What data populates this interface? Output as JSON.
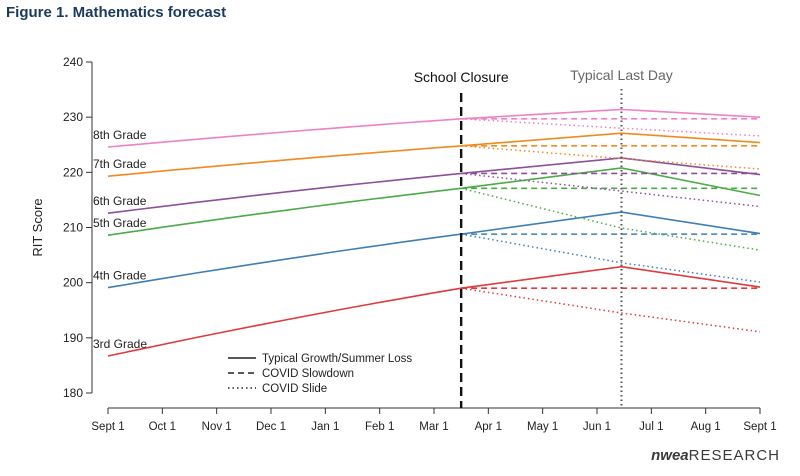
{
  "figure": {
    "title": "Figure 1. Mathematics forecast"
  },
  "brand": {
    "part1": "nwea",
    "part2": "RESEARCH"
  },
  "chart_data": {
    "type": "line",
    "title": "Figure 1. Mathematics forecast",
    "xlabel": "",
    "ylabel": "RIT Score",
    "ylim": [
      180,
      240
    ],
    "yticks": [
      180,
      190,
      200,
      210,
      220,
      230,
      240
    ],
    "x_ticks": [
      "Sept 1",
      "Oct 1",
      "Nov 1",
      "Dec 1",
      "Jan 1",
      "Feb 1",
      "Mar 1",
      "Apr 1",
      "May 1",
      "Jun 1",
      "Jul 1",
      "Aug 1",
      "Sept 1"
    ],
    "x_range_months": [
      0,
      12
    ],
    "grid": false,
    "events": [
      {
        "label": "School Closure",
        "x": 6.5,
        "style": "dashed",
        "color": "#111111"
      },
      {
        "label": "Typical Last Day",
        "x": 9.45,
        "style": "dotted",
        "color": "#555555"
      }
    ],
    "legend": {
      "position": "bottom-left",
      "entries": [
        {
          "label": "Typical Growth/Summer Loss",
          "style": "solid"
        },
        {
          "label": "COVID Slowdown",
          "style": "dashed"
        },
        {
          "label": "COVID Slide",
          "style": "dotted"
        }
      ]
    },
    "series": [
      {
        "name": "3rd Grade",
        "color": "#e0393e",
        "start": 186.7,
        "closure": 199.0,
        "typical_peak": 202.9,
        "typical_end": 199.2,
        "slowdown_end": 199.0,
        "slide_last_day": 194.5,
        "slide_end": 191.1
      },
      {
        "name": "4th Grade",
        "color": "#3f7fb5",
        "start": 199.1,
        "closure": 208.8,
        "typical_peak": 212.8,
        "typical_end": 208.9,
        "slowdown_end": 208.8,
        "slide_last_day": 203.6,
        "slide_end": 200.1
      },
      {
        "name": "5th Grade",
        "color": "#4bab48",
        "start": 208.6,
        "closure": 217.1,
        "typical_peak": 220.8,
        "typical_end": 215.8,
        "slowdown_end": 217.1,
        "slide_last_day": 209.9,
        "slide_end": 205.9
      },
      {
        "name": "6th Grade",
        "color": "#8e4f9c",
        "start": 212.6,
        "closure": 219.8,
        "typical_peak": 222.6,
        "typical_end": 219.6,
        "slowdown_end": 219.8,
        "slide_last_day": 216.6,
        "slide_end": 213.8
      },
      {
        "name": "7th Grade",
        "color": "#f28a1e",
        "start": 219.3,
        "closure": 224.8,
        "typical_peak": 227.1,
        "typical_end": 225.4,
        "slowdown_end": 224.8,
        "slide_last_day": 222.5,
        "slide_end": 220.6
      },
      {
        "name": "8th Grade",
        "color": "#ee82c3",
        "start": 224.6,
        "closure": 229.7,
        "typical_peak": 231.4,
        "typical_end": 230.0,
        "slowdown_end": 229.7,
        "slide_last_day": 228.0,
        "slide_end": 226.6
      }
    ]
  }
}
